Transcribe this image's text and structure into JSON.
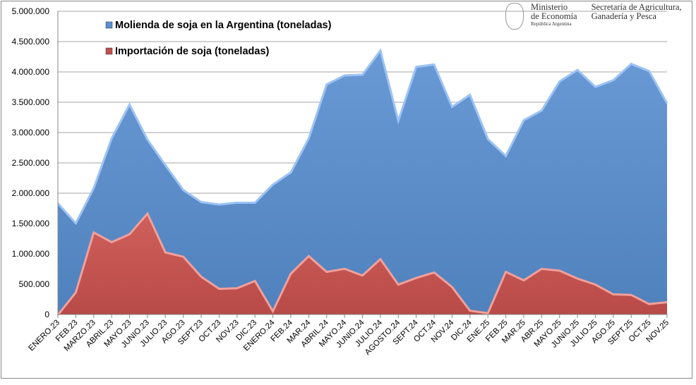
{
  "logo": {
    "ministry_line1": "Ministerio",
    "ministry_line2": "de Economía",
    "ministry_sub": "República Argentina",
    "secretary_line1": "Secretaría de Agricultura,",
    "secretary_line2": "Ganadería y Pesca"
  },
  "chart_data": {
    "type": "area",
    "title": "",
    "xlabel": "",
    "ylabel": "",
    "ylim": [
      0,
      5000000
    ],
    "yticks": [
      0,
      500000,
      1000000,
      1500000,
      2000000,
      2500000,
      3000000,
      3500000,
      4000000,
      4500000,
      5000000
    ],
    "ytick_labels": [
      "0",
      "500.000",
      "1.000.000",
      "1.500.000",
      "2.000.000",
      "2.500.000",
      "3.000.000",
      "3.500.000",
      "4.000.000",
      "4.500.000",
      "5.000.000"
    ],
    "grid": true,
    "legend_position": "top-left",
    "categories": [
      "ENERO.23",
      "FEB.23",
      "MARZO.23",
      "ABRIL.23",
      "MAYO.23",
      "JUNIO.23",
      "JULIO.23",
      "AGO.23",
      "SEPT.23",
      "OCT.23",
      "NOV.23",
      "DIC.23",
      "ENERO.24",
      "FEB.24",
      "MAR.24",
      "ABRIL.24",
      "MAYO.24",
      "JUNIO.24",
      "JULIO.24",
      "AGOSTO.24",
      "SEPT.24",
      "OCT.24",
      "NOV.24",
      "DIC.24",
      "ENE.25",
      "FEB.25",
      "MAR.25",
      "ABR.25",
      "MAYO.25",
      "JUNIO.25",
      "JULIO.25",
      "AGO.25",
      "SEPT.25",
      "OCT.25",
      "NOV.25"
    ],
    "series": [
      {
        "name": "Molienda de soja en la Argentina (toneladas)",
        "color": "#5b8fd0",
        "values": [
          1850000,
          1520000,
          2100000,
          2920000,
          3480000,
          2900000,
          2480000,
          2070000,
          1870000,
          1830000,
          1860000,
          1860000,
          2160000,
          2360000,
          2920000,
          3810000,
          3960000,
          3970000,
          4370000,
          3210000,
          4100000,
          4140000,
          3440000,
          3640000,
          2910000,
          2630000,
          3220000,
          3380000,
          3860000,
          4050000,
          3770000,
          3880000,
          4150000,
          4030000,
          3500000
        ]
      },
      {
        "name": "Importación de soja (toneladas)",
        "color": "#c0504d",
        "values": [
          10000,
          380000,
          1370000,
          1210000,
          1340000,
          1680000,
          1040000,
          970000,
          640000,
          440000,
          450000,
          570000,
          70000,
          690000,
          980000,
          720000,
          770000,
          660000,
          930000,
          510000,
          620000,
          710000,
          470000,
          80000,
          40000,
          720000,
          580000,
          770000,
          740000,
          610000,
          510000,
          350000,
          340000,
          190000,
          220000
        ]
      }
    ]
  }
}
